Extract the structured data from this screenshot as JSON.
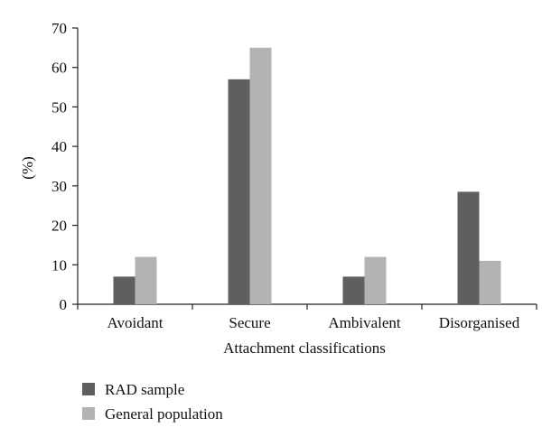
{
  "chart_data": {
    "type": "bar",
    "categories": [
      "Avoidant",
      "Secure",
      "Ambivalent",
      "Disorganised"
    ],
    "series": [
      {
        "name": "RAD sample",
        "values": [
          7,
          57,
          7,
          28.5
        ],
        "color": "#5f5f5f"
      },
      {
        "name": "General population",
        "values": [
          12,
          65,
          12,
          11
        ],
        "color": "#b3b3b3"
      }
    ],
    "title": "",
    "xlabel": "Attachment classifications",
    "ylabel": "(%)",
    "ylim": [
      0,
      70
    ],
    "yticks": [
      "0",
      "10",
      "20",
      "30",
      "40",
      "50",
      "60",
      "70"
    ],
    "grid": false,
    "legend_position": "bottom-left"
  }
}
